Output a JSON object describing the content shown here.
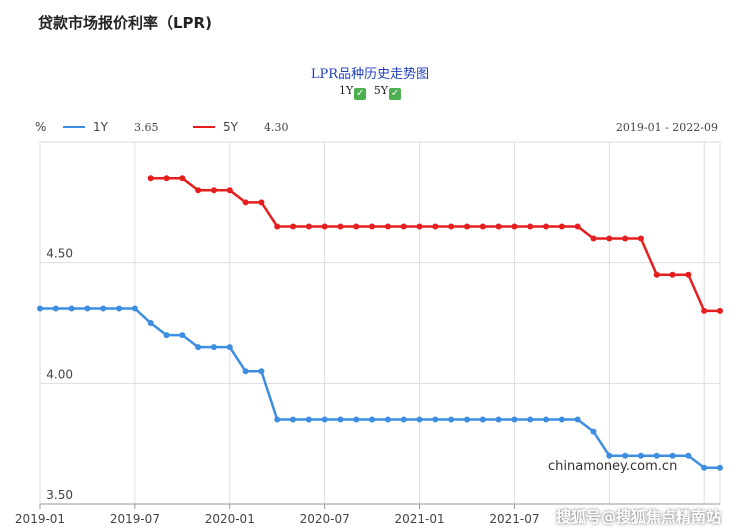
{
  "page_title": "贷款市场报价利率（LPR)",
  "chart_title": "LPR品种历史走势图",
  "toggles": [
    {
      "label": "1Y",
      "checked": true
    },
    {
      "label": "5Y",
      "checked": true
    }
  ],
  "unit": "%",
  "legend": [
    {
      "name": "1Y",
      "value": "3.65",
      "color": "#3d8ee0"
    },
    {
      "name": "5Y",
      "value": "4.30",
      "color": "#e61e1e"
    }
  ],
  "date_range": "2019-01 - 2022-09",
  "watermark": "chinamoney.com.cn",
  "bottom_watermark": "搜狐号@搜狐焦点精南站",
  "chart_data": {
    "type": "line",
    "ylim": [
      3.5,
      5.0
    ],
    "yticks": [
      "3.50",
      "4.00",
      "4.50"
    ],
    "xticks": [
      "2019-01",
      "2019-07",
      "2020-01",
      "2020-07",
      "2021-01",
      "2021-07"
    ],
    "grid": true,
    "series": [
      {
        "name": "1Y",
        "color": "#3d8ee0",
        "values": [
          4.31,
          4.31,
          4.31,
          4.31,
          4.31,
          4.31,
          4.31,
          4.25,
          4.2,
          4.2,
          4.15,
          4.15,
          4.15,
          4.05,
          4.05,
          3.85,
          3.85,
          3.85,
          3.85,
          3.85,
          3.85,
          3.85,
          3.85,
          3.85,
          3.85,
          3.85,
          3.85,
          3.85,
          3.85,
          3.85,
          3.85,
          3.85,
          3.85,
          3.85,
          3.85,
          3.8,
          3.7,
          3.7,
          3.7,
          3.7,
          3.7,
          3.7,
          3.65,
          3.65
        ]
      },
      {
        "name": "5Y",
        "color": "#e61e1e",
        "start_index": 7,
        "values": [
          4.85,
          4.85,
          4.85,
          4.8,
          4.8,
          4.8,
          4.75,
          4.75,
          4.65,
          4.65,
          4.65,
          4.65,
          4.65,
          4.65,
          4.65,
          4.65,
          4.65,
          4.65,
          4.65,
          4.65,
          4.65,
          4.65,
          4.65,
          4.65,
          4.65,
          4.65,
          4.65,
          4.65,
          4.6,
          4.6,
          4.6,
          4.6,
          4.45,
          4.45,
          4.45,
          4.3,
          4.3
        ]
      }
    ]
  }
}
